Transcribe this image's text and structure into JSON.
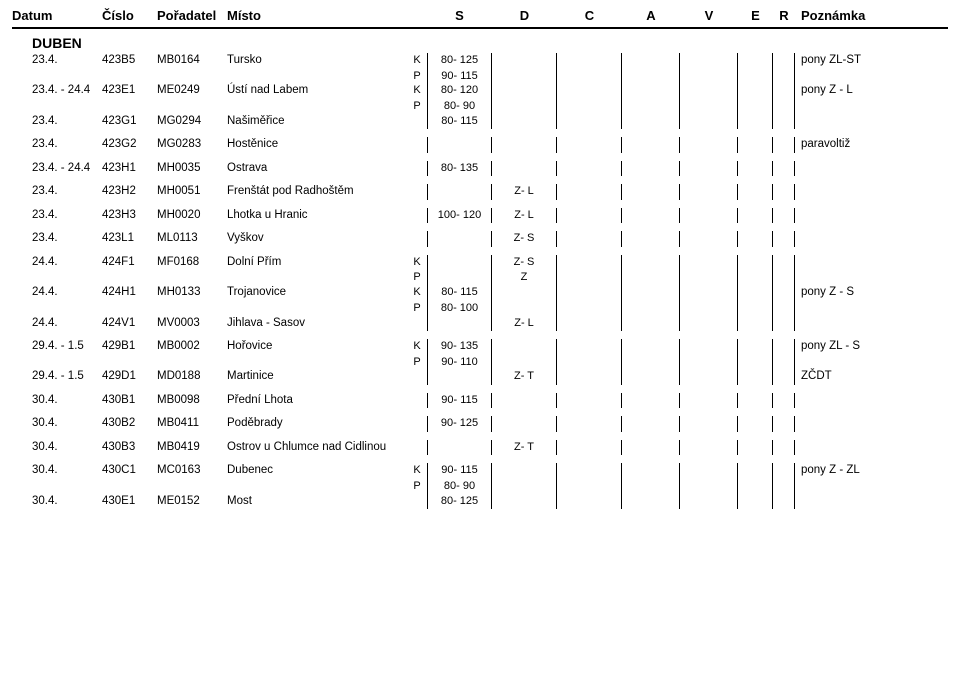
{
  "header": {
    "datum": "Datum",
    "cislo": "Číslo",
    "poradatel": "Pořadatel",
    "misto": "Místo",
    "s": "S",
    "d": "D",
    "c": "C",
    "a": "A",
    "v": "V",
    "e": "E",
    "r": "R",
    "poznamka": "Poznámka"
  },
  "month": "DUBEN",
  "groups": [
    {
      "rows": [
        {
          "datum": "23.4.",
          "cislo": "423B5",
          "poradatel": "MB0164",
          "misto": "Tursko",
          "sp": "K",
          "s": "80- 125",
          "poznamka": "pony ZL-ST"
        },
        {
          "sp": "P",
          "s": "90- 115"
        },
        {
          "datum": "23.4. - 24.4",
          "cislo": "423E1",
          "poradatel": "ME0249",
          "misto": "Ústí nad Labem",
          "sp": "K",
          "s": "80- 120",
          "poznamka": "pony Z - L"
        },
        {
          "sp": "P",
          "s": "80- 90"
        },
        {
          "datum": "23.4.",
          "cislo": "423G1",
          "poradatel": "MG0294",
          "misto": "Našiměřice",
          "s": "80- 115"
        }
      ]
    },
    {
      "rows": [
        {
          "datum": "23.4.",
          "cislo": "423G2",
          "poradatel": "MG0283",
          "misto": "Hostěnice",
          "poznamka": "paravoltiž"
        }
      ]
    },
    {
      "rows": [
        {
          "datum": "23.4. - 24.4",
          "cislo": "423H1",
          "poradatel": "MH0035",
          "misto": "Ostrava",
          "s": "80- 135"
        }
      ]
    },
    {
      "rows": [
        {
          "datum": "23.4.",
          "cislo": "423H2",
          "poradatel": "MH0051",
          "misto": "Frenštát pod Radhoštěm",
          "d": "Z- L"
        }
      ]
    },
    {
      "rows": [
        {
          "datum": "23.4.",
          "cislo": "423H3",
          "poradatel": "MH0020",
          "misto": "Lhotka u Hranic",
          "s": "100- 120",
          "d": "Z- L"
        }
      ]
    },
    {
      "rows": [
        {
          "datum": "23.4.",
          "cislo": "423L1",
          "poradatel": "ML0113",
          "misto": "Vyškov",
          "d": "Z- S"
        }
      ]
    },
    {
      "rows": [
        {
          "datum": "24.4.",
          "cislo": "424F1",
          "poradatel": "MF0168",
          "misto": "Dolní Přím",
          "sp": "K",
          "d": "Z- S"
        },
        {
          "sp": "P",
          "d": "Z"
        },
        {
          "datum": "24.4.",
          "cislo": "424H1",
          "poradatel": "MH0133",
          "misto": "Trojanovice",
          "sp": "K",
          "s": "80- 115",
          "poznamka": "pony Z - S"
        },
        {
          "sp": "P",
          "s": "80- 100"
        },
        {
          "datum": "24.4.",
          "cislo": "424V1",
          "poradatel": "MV0003",
          "misto": "Jihlava - Sasov",
          "d": "Z- L"
        }
      ]
    },
    {
      "rows": [
        {
          "datum": "29.4. - 1.5",
          "cislo": "429B1",
          "poradatel": "MB0002",
          "misto": "Hořovice",
          "sp": "K",
          "s": "90- 135",
          "poznamka": "pony ZL - S"
        },
        {
          "sp": "P",
          "s": "90- 110"
        },
        {
          "datum": "29.4. - 1.5",
          "cislo": "429D1",
          "poradatel": "MD0188",
          "misto": "Martinice",
          "d": "Z- T",
          "poznamka": "ZČDT"
        }
      ]
    },
    {
      "rows": [
        {
          "datum": "30.4.",
          "cislo": "430B1",
          "poradatel": "MB0098",
          "misto": "Přední Lhota",
          "s": "90- 115"
        }
      ]
    },
    {
      "rows": [
        {
          "datum": "30.4.",
          "cislo": "430B2",
          "poradatel": "MB0411",
          "misto": "Poděbrady",
          "s": "90- 125"
        }
      ]
    },
    {
      "rows": [
        {
          "datum": "30.4.",
          "cislo": "430B3",
          "poradatel": "MB0419",
          "misto": "Ostrov u Chlumce nad Cidlinou",
          "d": "Z- T"
        }
      ]
    },
    {
      "rows": [
        {
          "datum": "30.4.",
          "cislo": "430C1",
          "poradatel": "MC0163",
          "misto": "Dubenec",
          "sp": "K",
          "s": "90- 115",
          "poznamka": "pony Z - ZL"
        },
        {
          "sp": "P",
          "s": "80- 90"
        },
        {
          "datum": "30.4.",
          "cislo": "430E1",
          "poradatel": "ME0152",
          "misto": "Most",
          "s": "80- 125"
        }
      ]
    }
  ]
}
